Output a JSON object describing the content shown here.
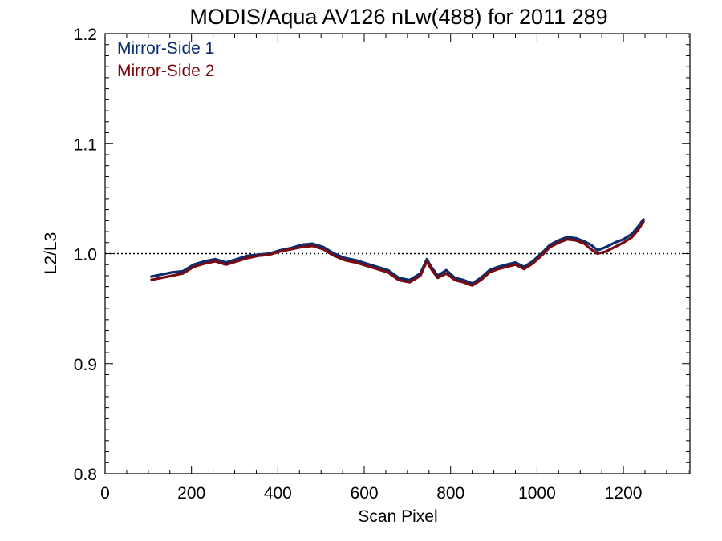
{
  "chart_data": {
    "type": "line",
    "title": "MODIS/Aqua AV126 nLw(488) for 2011 289",
    "xlabel": "Scan Pixel",
    "ylabel": "L2/L3",
    "xlim": [
      0,
      1354
    ],
    "ylim": [
      0.8,
      1.2
    ],
    "x_ticks": [
      "0",
      "200",
      "400",
      "600",
      "800",
      "1000",
      "1200"
    ],
    "y_ticks": [
      "0.8",
      "0.9",
      "1.0",
      "1.1",
      "1.2"
    ],
    "reference_line": 1.0,
    "legend_position": "top-left",
    "grid": false,
    "colors": {
      "mirror_side_1": "#0b2d6e",
      "mirror_side_2": "#7a0a12"
    },
    "x": [
      105,
      130,
      155,
      180,
      205,
      230,
      255,
      280,
      305,
      330,
      355,
      380,
      405,
      430,
      455,
      480,
      505,
      530,
      555,
      580,
      605,
      630,
      655,
      680,
      705,
      730,
      745,
      755,
      770,
      790,
      810,
      830,
      850,
      870,
      890,
      910,
      930,
      950,
      970,
      990,
      1010,
      1030,
      1050,
      1070,
      1090,
      1110,
      1125,
      1140,
      1160,
      1180,
      1200,
      1220,
      1235,
      1248
    ],
    "series": [
      {
        "name": "Mirror-Side 1",
        "values": [
          0.979,
          0.981,
          0.983,
          0.984,
          0.99,
          0.993,
          0.995,
          0.992,
          0.995,
          0.998,
          0.999,
          1.0,
          1.003,
          1.005,
          1.008,
          1.009,
          1.006,
          1.0,
          0.996,
          0.994,
          0.991,
          0.988,
          0.985,
          0.978,
          0.976,
          0.982,
          0.995,
          0.988,
          0.98,
          0.985,
          0.978,
          0.976,
          0.973,
          0.978,
          0.985,
          0.988,
          0.99,
          0.992,
          0.988,
          0.993,
          1.0,
          1.008,
          1.012,
          1.015,
          1.014,
          1.011,
          1.008,
          1.003,
          1.006,
          1.01,
          1.013,
          1.018,
          1.025,
          1.032
        ]
      },
      {
        "name": "Mirror-Side 2",
        "values": [
          0.976,
          0.978,
          0.98,
          0.982,
          0.988,
          0.991,
          0.993,
          0.99,
          0.993,
          0.996,
          0.998,
          0.999,
          1.002,
          1.004,
          1.006,
          1.007,
          1.004,
          0.998,
          0.994,
          0.992,
          0.989,
          0.986,
          0.983,
          0.976,
          0.974,
          0.98,
          0.993,
          0.986,
          0.978,
          0.982,
          0.976,
          0.974,
          0.971,
          0.976,
          0.983,
          0.986,
          0.988,
          0.99,
          0.986,
          0.991,
          0.998,
          1.006,
          1.01,
          1.013,
          1.012,
          1.009,
          1.004,
          1.0,
          1.002,
          1.006,
          1.01,
          1.015,
          1.022,
          1.03
        ]
      }
    ]
  }
}
